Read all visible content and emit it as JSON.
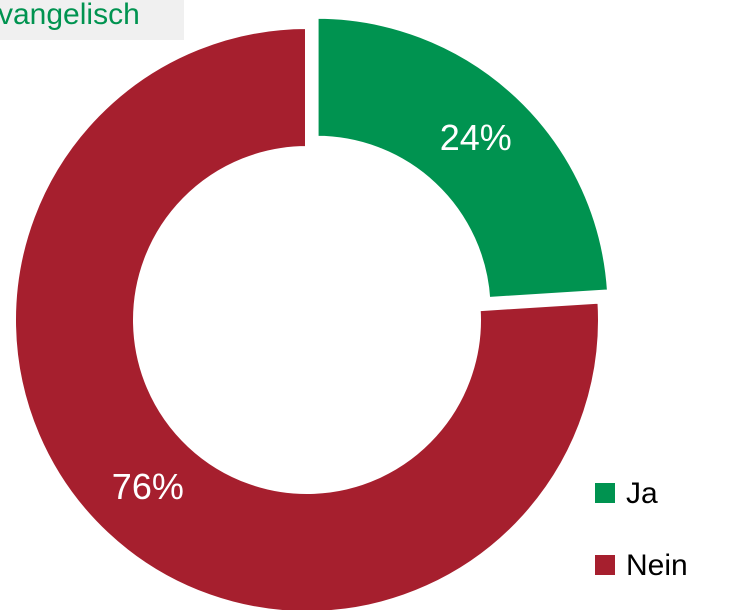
{
  "chart_data": {
    "type": "pie",
    "title": "vangelisch",
    "categories": [
      "Ja",
      "Nein"
    ],
    "values": [
      24,
      76
    ],
    "value_labels": [
      "24%",
      "76%"
    ],
    "colors": [
      "#009350",
      "#a61f2e"
    ],
    "donut": true,
    "legend": "bottom-right",
    "exploded": [
      0
    ]
  }
}
